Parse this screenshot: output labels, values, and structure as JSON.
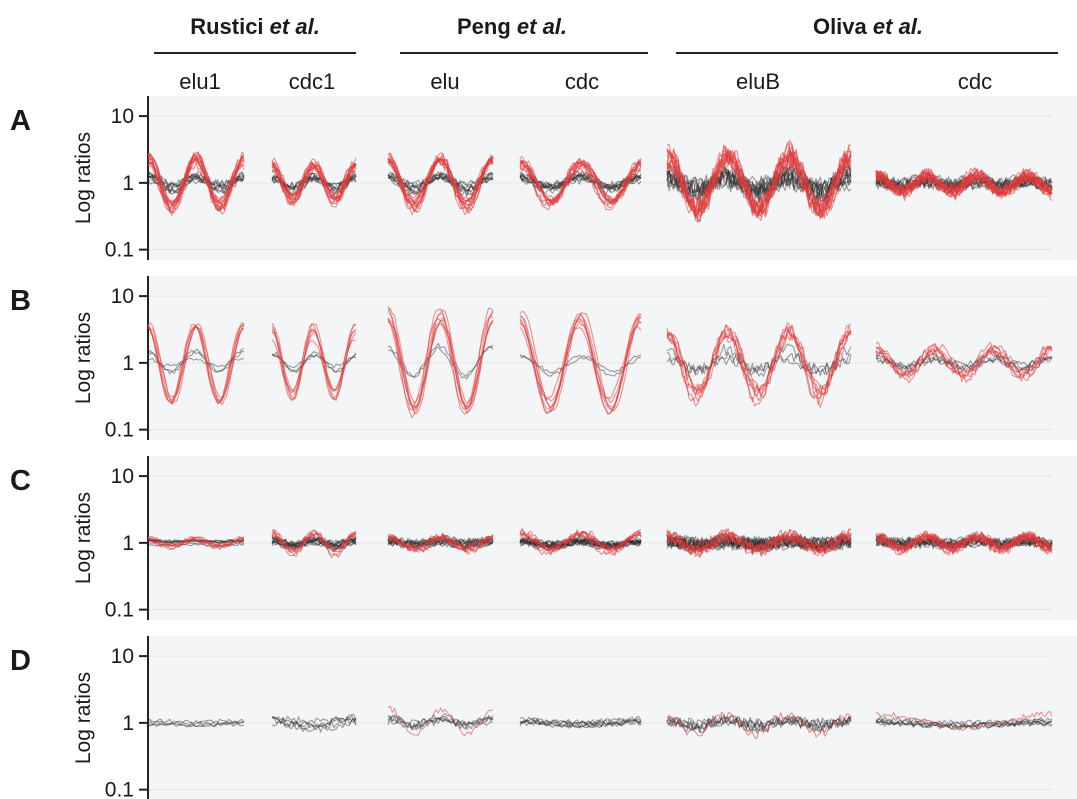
{
  "chart_data": {
    "type": "line",
    "yscale": "log",
    "ylim": [
      0.07,
      20
    ],
    "ylabel": "Log ratios",
    "yticks": [
      {
        "value": 10,
        "label": "10"
      },
      {
        "value": 1,
        "label": "1"
      },
      {
        "value": 0.1,
        "label": "0.1"
      }
    ],
    "grid": true,
    "colors": {
      "highlight": "#e03a3a",
      "background": "#2b2b2b",
      "panel": "#f4f5f7"
    },
    "studies": [
      {
        "name": "Rustici",
        "suffix": "et al.",
        "conditions": [
          "elu1",
          "cdc1"
        ]
      },
      {
        "name": "Peng",
        "suffix": "et al.",
        "conditions": [
          "elu",
          "cdc"
        ]
      },
      {
        "name": "Oliva",
        "suffix": "et al.",
        "conditions": [
          "eluB",
          "cdc"
        ]
      }
    ],
    "panels": [
      {
        "letter": "A",
        "series": [
          {
            "condition": "elu1",
            "periods": 2,
            "amp": 0.35,
            "noise": 0.06,
            "n": 22,
            "red_fraction": 0.6
          },
          {
            "condition": "cdc1",
            "periods": 2,
            "amp": 0.25,
            "noise": 0.05,
            "n": 22,
            "red_fraction": 0.6
          },
          {
            "condition": "elu",
            "periods": 2,
            "amp": 0.35,
            "noise": 0.05,
            "n": 22,
            "red_fraction": 0.6
          },
          {
            "condition": "cdc",
            "periods": 2,
            "amp": 0.3,
            "noise": 0.05,
            "n": 22,
            "red_fraction": 0.55
          },
          {
            "condition": "eluB",
            "periods": 3,
            "amp": 0.4,
            "noise": 0.14,
            "n": 26,
            "red_fraction": 0.55
          },
          {
            "condition": "cdc",
            "periods": 3.5,
            "amp": 0.12,
            "noise": 0.09,
            "n": 26,
            "red_fraction": 0.55
          }
        ]
      },
      {
        "letter": "B",
        "series": [
          {
            "condition": "elu1",
            "periods": 2,
            "amp": 0.55,
            "noise": 0.03,
            "n": 9,
            "red_fraction": 0.7
          },
          {
            "condition": "cdc1",
            "periods": 2,
            "amp": 0.45,
            "noise": 0.03,
            "n": 9,
            "red_fraction": 0.7
          },
          {
            "condition": "elu",
            "periods": 2,
            "amp": 0.75,
            "noise": 0.04,
            "n": 9,
            "red_fraction": 0.75
          },
          {
            "condition": "cdc",
            "periods": 2,
            "amp": 0.6,
            "noise": 0.03,
            "n": 9,
            "red_fraction": 0.75
          },
          {
            "condition": "eluB",
            "periods": 3,
            "amp": 0.45,
            "noise": 0.09,
            "n": 10,
            "red_fraction": 0.7
          },
          {
            "condition": "cdc",
            "periods": 3,
            "amp": 0.2,
            "noise": 0.06,
            "n": 10,
            "red_fraction": 0.6
          }
        ]
      },
      {
        "letter": "C",
        "series": [
          {
            "condition": "elu1",
            "periods": 2,
            "amp": 0.05,
            "noise": 0.02,
            "n": 14,
            "red_fraction": 0.4
          },
          {
            "condition": "cdc1",
            "periods": 2,
            "amp": 0.15,
            "noise": 0.04,
            "n": 20,
            "red_fraction": 0.3
          },
          {
            "condition": "elu",
            "periods": 2,
            "amp": 0.08,
            "noise": 0.05,
            "n": 20,
            "red_fraction": 0.35
          },
          {
            "condition": "cdc",
            "periods": 2,
            "amp": 0.12,
            "noise": 0.05,
            "n": 22,
            "red_fraction": 0.3
          },
          {
            "condition": "eluB",
            "periods": 3,
            "amp": 0.1,
            "noise": 0.09,
            "n": 24,
            "red_fraction": 0.35
          },
          {
            "condition": "cdc",
            "periods": 3.5,
            "amp": 0.08,
            "noise": 0.07,
            "n": 24,
            "red_fraction": 0.45
          }
        ]
      },
      {
        "letter": "D",
        "series": [
          {
            "condition": "elu1",
            "periods": 1,
            "amp": 0.03,
            "noise": 0.03,
            "n": 4,
            "red_fraction": 0
          },
          {
            "condition": "cdc1",
            "periods": 1,
            "amp": 0.12,
            "noise": 0.06,
            "n": 5,
            "red_fraction": 0
          },
          {
            "condition": "elu",
            "periods": 2,
            "amp": 0.18,
            "noise": 0.05,
            "n": 6,
            "red_fraction": 0.2
          },
          {
            "condition": "cdc",
            "periods": 1,
            "amp": 0.08,
            "noise": 0.04,
            "n": 6,
            "red_fraction": 0
          },
          {
            "condition": "eluB",
            "periods": 3,
            "amp": 0.15,
            "noise": 0.08,
            "n": 7,
            "red_fraction": 0.15
          },
          {
            "condition": "cdc",
            "periods": 1,
            "amp": 0.1,
            "noise": 0.04,
            "n": 7,
            "red_fraction": 0.1
          }
        ]
      }
    ]
  }
}
